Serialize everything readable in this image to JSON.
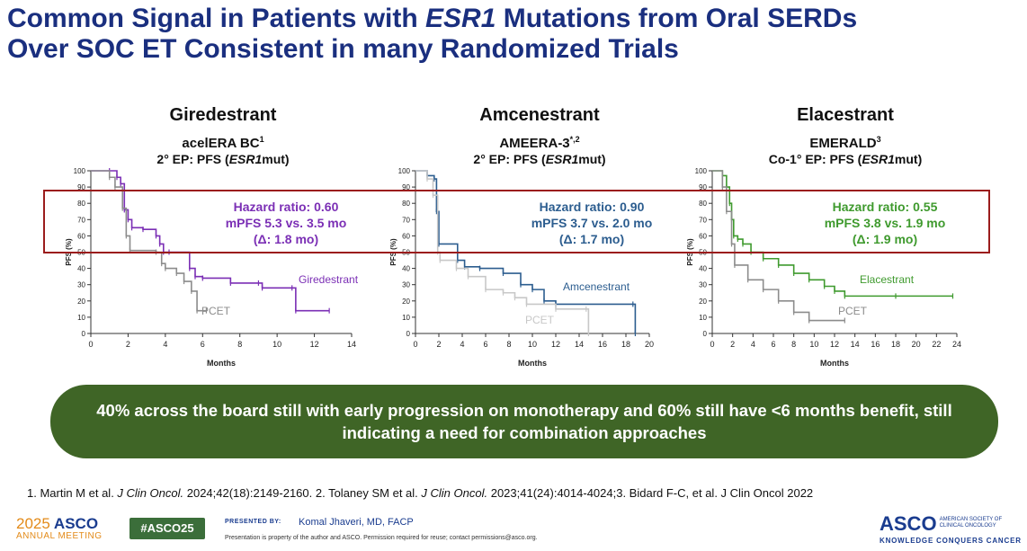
{
  "title": {
    "line1_pre": "Common Signal in Patients with ",
    "line1_em": "ESR1",
    "line1_post": " Mutations from Oral SERDs",
    "line2": "Over SOC ET Consistent in many Randomized Trials"
  },
  "panels": [
    {
      "drug": "Giredestrant",
      "trial": "acelERA BC",
      "trial_sup": "1",
      "ep_pre": "2° EP: PFS (",
      "ep_em": "ESR1",
      "ep_post": "mut)"
    },
    {
      "drug": "Amcenestrant",
      "trial": "AMEERA-3",
      "trial_sup": "*,2",
      "ep_pre": "2° EP: PFS (",
      "ep_em": "ESR1",
      "ep_post": "mut)"
    },
    {
      "drug": "Elacestrant",
      "trial": "EMERALD",
      "trial_sup": "3",
      "ep_pre": "Co-1° EP: PFS (",
      "ep_em": "ESR1",
      "ep_post": "mut)"
    }
  ],
  "chart_data": [
    {
      "type": "line",
      "xlabel": "Months",
      "ylabel": "PFS (%)",
      "xlim": [
        0,
        14
      ],
      "ylim": [
        0,
        100
      ],
      "xticks": [
        0,
        2,
        4,
        6,
        8,
        10,
        12,
        14
      ],
      "yticks": [
        0,
        10,
        20,
        30,
        40,
        50,
        60,
        70,
        80,
        90,
        100
      ],
      "annotation": [
        "Hazard ratio: 0.60",
        "mPFS 5.3 vs. 3.5 mo",
        "(Δ: 1.8 mo)"
      ],
      "annotation_color": "#7b2fb5",
      "series": [
        {
          "name": "Giredestrant",
          "color": "#7b2fb5",
          "x": [
            0,
            1.0,
            1.4,
            1.6,
            1.8,
            2.0,
            2.2,
            2.8,
            3.5,
            3.7,
            3.9,
            4.2,
            5.3,
            5.6,
            6.0,
            7.5,
            9.0,
            9.2,
            10.8,
            11.0,
            12.8
          ],
          "y": [
            100,
            100,
            96,
            92,
            76,
            70,
            65,
            64,
            60,
            55,
            50,
            50,
            40,
            35,
            34,
            31,
            31,
            28,
            28,
            14,
            14
          ]
        },
        {
          "name": "PCET",
          "color": "#8c8c8c",
          "x": [
            0,
            1.0,
            1.3,
            1.7,
            1.9,
            2.1,
            3.5,
            3.8,
            4.0,
            4.6,
            5.0,
            5.4,
            5.7,
            6.2
          ],
          "y": [
            100,
            96,
            90,
            77,
            60,
            51,
            50,
            43,
            40,
            37,
            32,
            26,
            14,
            14
          ]
        }
      ]
    },
    {
      "type": "line",
      "xlabel": "Months",
      "ylabel": "PFS (%)",
      "xlim": [
        0,
        20
      ],
      "ylim": [
        0,
        100
      ],
      "xticks": [
        0,
        2,
        4,
        6,
        8,
        10,
        12,
        14,
        16,
        18,
        20
      ],
      "yticks": [
        0,
        10,
        20,
        30,
        40,
        50,
        60,
        70,
        80,
        90,
        100
      ],
      "annotation": [
        "Hazard ratio: 0.90",
        "mPFS 3.7 vs. 2.0 mo",
        "(Δ: 1.7 mo)"
      ],
      "annotation_color": "#2c5d8f",
      "series": [
        {
          "name": "Amcenestrant",
          "color": "#2c5d8f",
          "x": [
            0,
            1.0,
            1.6,
            1.8,
            2.0,
            3.6,
            4.2,
            5.5,
            7.5,
            9.0,
            10.0,
            11.0,
            12.0,
            18.6,
            18.8
          ],
          "y": [
            100,
            97,
            95,
            75,
            55,
            45,
            41,
            40,
            37,
            30,
            27,
            20,
            18,
            18,
            0
          ]
        },
        {
          "name": "PCET",
          "color": "#c8c8c8",
          "x": [
            0,
            1.0,
            1.5,
            1.9,
            2.1,
            3.5,
            4.5,
            6.0,
            7.5,
            8.5,
            9.5,
            12.0,
            14.6,
            14.8
          ],
          "y": [
            100,
            95,
            85,
            50,
            45,
            40,
            35,
            27,
            25,
            22,
            18,
            15,
            15,
            0
          ]
        }
      ]
    },
    {
      "type": "line",
      "xlabel": "Months",
      "ylabel": "PFS (%)",
      "xlim": [
        0,
        24
      ],
      "ylim": [
        0,
        100
      ],
      "xticks": [
        0,
        2,
        4,
        6,
        8,
        10,
        12,
        14,
        16,
        18,
        20,
        22,
        24
      ],
      "yticks": [
        0,
        10,
        20,
        30,
        40,
        50,
        60,
        70,
        80,
        90,
        100
      ],
      "annotation": [
        "Hazard ratio: 0.55",
        "mPFS 3.8 vs. 1.9 mo",
        "(Δ: 1.9 mo)"
      ],
      "annotation_color": "#3f9a2e",
      "series": [
        {
          "name": "Elacestrant",
          "color": "#3f9a2e",
          "x": [
            0,
            1.0,
            1.4,
            1.7,
            1.9,
            2.1,
            2.5,
            3.0,
            3.8,
            5.0,
            6.5,
            8.0,
            9.5,
            11.0,
            12.0,
            13.0,
            18.0,
            23.6
          ],
          "y": [
            100,
            97,
            90,
            80,
            70,
            60,
            58,
            55,
            50,
            46,
            42,
            37,
            33,
            29,
            26,
            23,
            23,
            23
          ]
        },
        {
          "name": "PCET",
          "color": "#8c8c8c",
          "x": [
            0,
            1.0,
            1.4,
            1.9,
            2.2,
            3.5,
            5.0,
            6.5,
            8.0,
            9.5,
            13.0
          ],
          "y": [
            100,
            90,
            75,
            55,
            42,
            33,
            27,
            20,
            13,
            8,
            8
          ]
        }
      ]
    }
  ],
  "banner": "40% across the board still with early progression on monotherapy and 60% still have <6 months benefit, still indicating a need for combination approaches",
  "references": {
    "r1_pre": "1.  Martin M et al. ",
    "r1_em": "J Clin Oncol.",
    "r1_post": " 2024;42(18):2149-2160. 2. Tolaney SM et al. ",
    "r2_em": "J Clin Oncol.",
    "r2_post": " 2023;41(24):4014-4024;3. Bidard F-C, et al. J Clin Oncol 2022"
  },
  "footer": {
    "year": "2025",
    "brand": "ASCO",
    "annual": "ANNUAL MEETING",
    "hashtag": "#ASCO25",
    "presented_by": "PRESENTED BY:",
    "presenter": "Komal Jhaveri, MD, FACP",
    "disclaimer": "Presentation is property of the author and ASCO. Permission required for reuse; contact permissions@asco.org.",
    "society": "AMERICAN SOCIETY OF CLINICAL ONCOLOGY",
    "tagline": "KNOWLEDGE CONQUERS CANCER"
  }
}
